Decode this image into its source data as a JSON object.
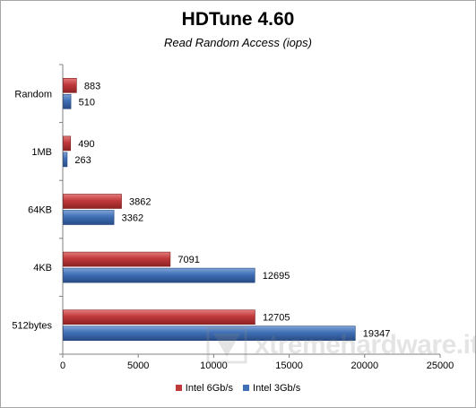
{
  "chart_data": {
    "type": "bar",
    "orientation": "horizontal",
    "title": "HDTune 4.60",
    "subtitle": "Read Random Access (iops)",
    "categories": [
      "Random",
      "1MB",
      "64KB",
      "4KB",
      "512bytes"
    ],
    "series": [
      {
        "name": "Intel 6Gb/s",
        "color": "#c0393b",
        "values": [
          883,
          490,
          3862,
          7091,
          12705
        ]
      },
      {
        "name": "Intel 3Gb/s",
        "color": "#3f6fb5",
        "values": [
          510,
          263,
          3362,
          12695,
          19347
        ]
      }
    ],
    "xlim": [
      0,
      25000
    ],
    "xticks": [
      "0",
      "5000",
      "10000",
      "15000",
      "20000",
      "25000"
    ],
    "grid": false,
    "legend_position": "bottom"
  },
  "watermark": {
    "text": "xtremehardware.it"
  }
}
